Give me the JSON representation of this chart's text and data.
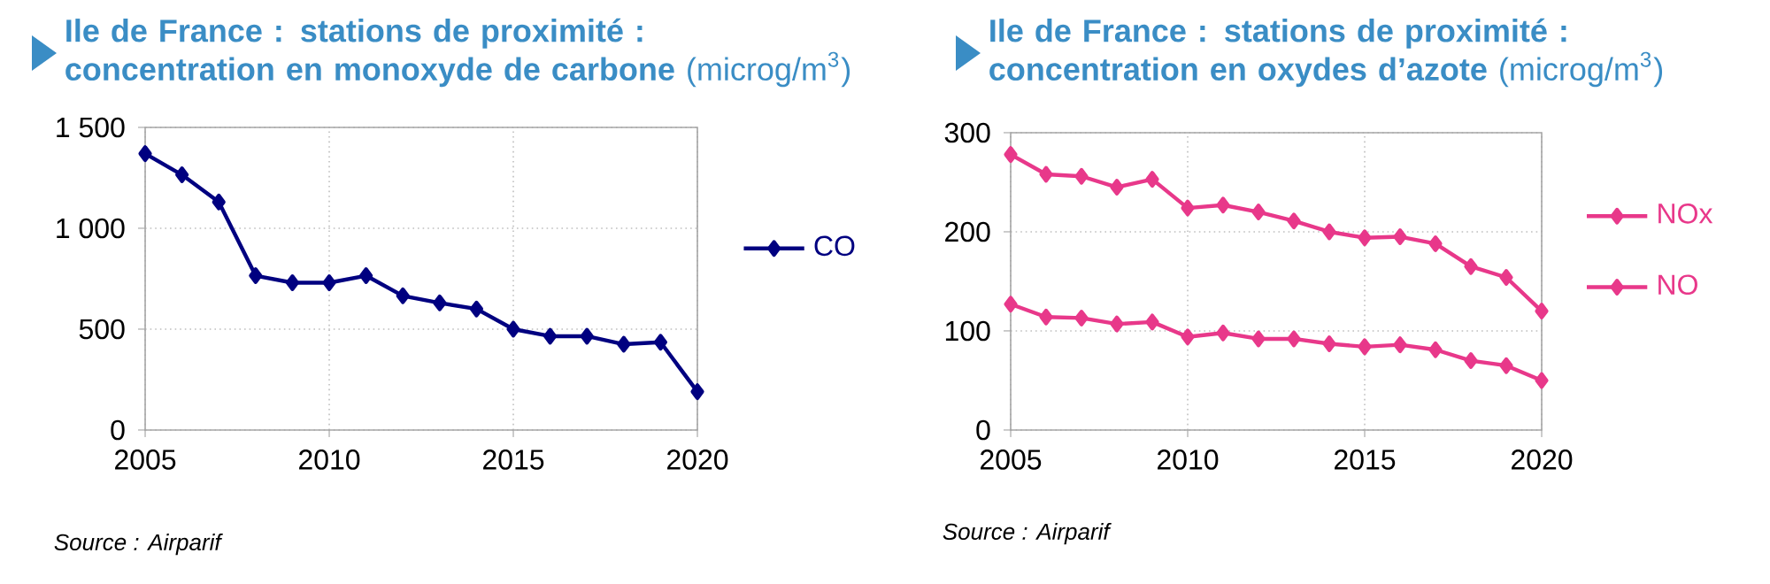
{
  "chart_data": [
    {
      "type": "line",
      "title": "**Ile de France : stations de proximité : concentration en monoxyde de carbone** (microg/m$^{3}$)",
      "x": [
        2005,
        2006,
        2007,
        2008,
        2009,
        2010,
        2011,
        2012,
        2013,
        2014,
        2015,
        2016,
        2017,
        2018,
        2019,
        2020
      ],
      "series": [
        {
          "name": "CO",
          "color": "#000080",
          "values": [
            1370,
            1265,
            1130,
            765,
            730,
            730,
            765,
            665,
            630,
            600,
            500,
            465,
            465,
            425,
            435,
            190
          ]
        }
      ],
      "xlim": [
        2005,
        2020
      ],
      "xticks": [
        2005,
        2010,
        2015,
        2020
      ],
      "ylim": [
        0,
        1500
      ],
      "yticks": [
        0,
        500,
        {
          "value": 1000,
          "label": "1 000"
        },
        {
          "value": 1500,
          "label": "1 500"
        }
      ],
      "grid": true,
      "legend": "right",
      "marker": "diamond",
      "line_style": "solid",
      "annotations": [
        "Source : Airparif"
      ]
    },
    {
      "type": "line",
      "title": "**Ile de France : stations de proximité : concentration en oxydes d’azote** (microg/m$^{3}$)",
      "x": [
        2005,
        2006,
        2007,
        2008,
        2009,
        2010,
        2011,
        2012,
        2013,
        2014,
        2015,
        2016,
        2017,
        2018,
        2019,
        2020
      ],
      "series": [
        {
          "name": "NOx",
          "color": "#e8388a",
          "values": [
            278,
            258,
            256,
            245,
            253,
            224,
            227,
            220,
            211,
            200,
            194,
            195,
            188,
            165,
            154,
            120
          ]
        },
        {
          "name": "NO",
          "color": "#e8388a",
          "values": [
            127,
            114,
            113,
            107,
            109,
            94,
            98,
            92,
            92,
            87,
            84,
            86,
            81,
            70,
            65,
            50
          ]
        }
      ],
      "xlim": [
        2005,
        2020
      ],
      "xticks": [
        2005,
        2010,
        2015,
        2020
      ],
      "ylim": [
        0,
        300
      ],
      "yticks": [
        0,
        100,
        200,
        300
      ],
      "grid": true,
      "legend": "right",
      "marker": "diamond",
      "line_style": "solid",
      "annotations": [
        "Source : Airparif"
      ]
    }
  ]
}
